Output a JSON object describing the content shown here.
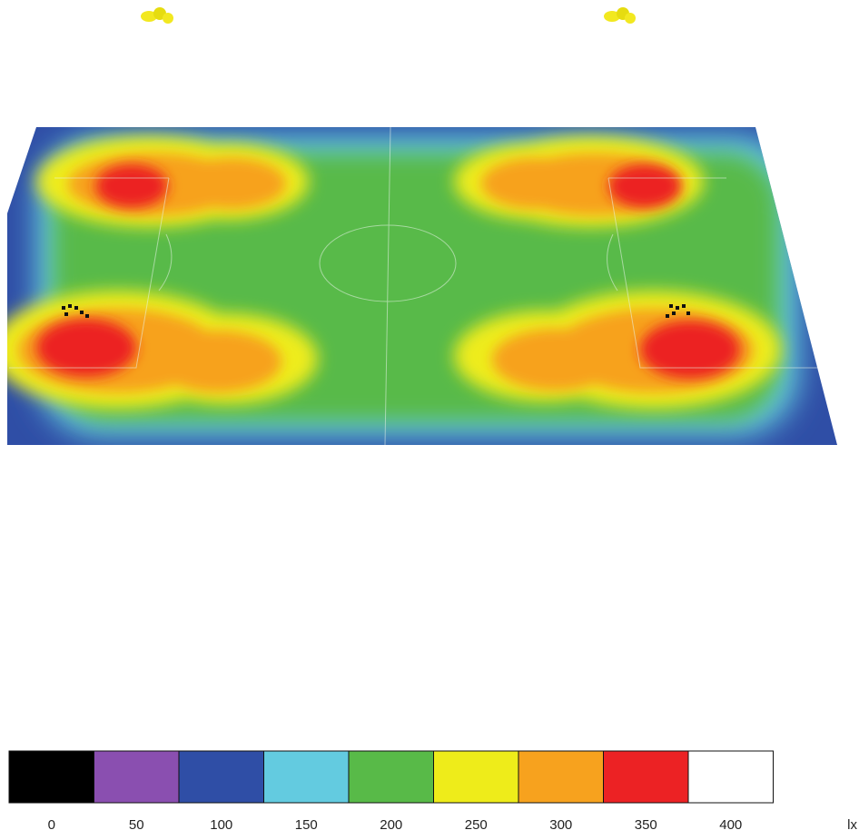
{
  "legend": {
    "unit": "lx",
    "stops": [
      {
        "value": "0",
        "color": "#000000"
      },
      {
        "value": "50",
        "color": "#8a4fb0"
      },
      {
        "value": "100",
        "color": "#2f4ea6"
      },
      {
        "value": "150",
        "color": "#63cbe0"
      },
      {
        "value": "200",
        "color": "#58ba48"
      },
      {
        "value": "250",
        "color": "#eeec1a"
      },
      {
        "value": "300",
        "color": "#f7a21e"
      },
      {
        "value": "350",
        "color": "#ec2224"
      },
      {
        "value": "400",
        "color": "#ffffff"
      }
    ]
  },
  "heatmap": {
    "background_color": "#58ba48",
    "edge_color": "#2f4ea6",
    "hotspots": [
      "top-left",
      "bottom-left",
      "top-right",
      "bottom-right"
    ]
  }
}
